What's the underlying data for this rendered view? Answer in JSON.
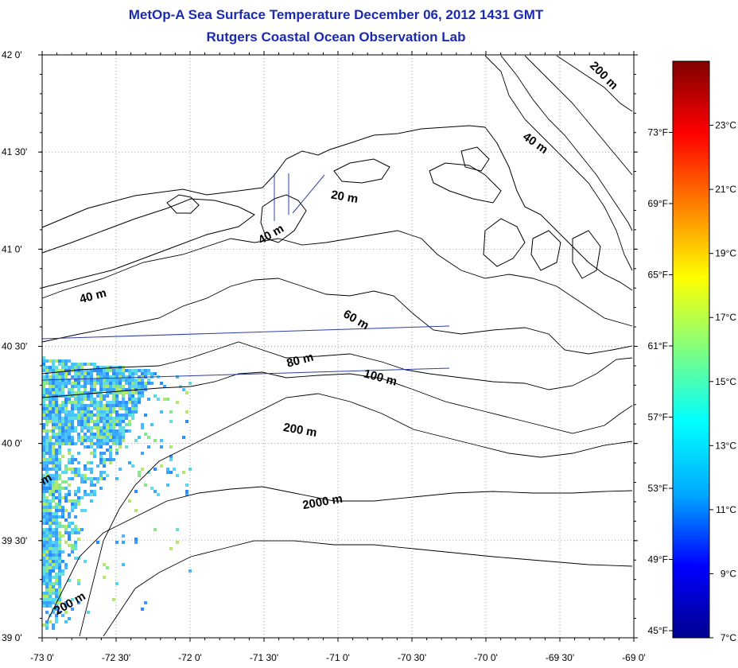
{
  "header": {
    "title": "MetOp-A Sea Surface Temperature December 06, 2012 1431 GMT",
    "subtitle": "Rutgers Coastal Ocean Observation Lab"
  },
  "map": {
    "lat_range": [
      39.0,
      42.0
    ],
    "lon_range": [
      -73.0,
      -69.0
    ],
    "grid": "dotted",
    "lat_ticks": [
      {
        "label": "42 0'",
        "value": 42.0
      },
      {
        "label": "41 30'",
        "value": 41.5
      },
      {
        "label": "41 0'",
        "value": 41.0
      },
      {
        "label": "40 30'",
        "value": 40.5
      },
      {
        "label": "40 0'",
        "value": 40.0
      },
      {
        "label": "39 30'",
        "value": 39.5
      },
      {
        "label": "39 0'",
        "value": 39.0
      }
    ],
    "lon_ticks": [
      {
        "label": "-73 0'",
        "value": -73.0
      },
      {
        "label": "-72 30'",
        "value": -72.5
      },
      {
        "label": "-72 0'",
        "value": -72.0
      },
      {
        "label": "-71 30'",
        "value": -71.5
      },
      {
        "label": "-71 0'",
        "value": -71.0
      },
      {
        "label": "-70 30'",
        "value": -70.5
      },
      {
        "label": "-70 0'",
        "value": -70.0
      },
      {
        "label": "-69 30'",
        "value": -69.5
      },
      {
        "label": "-69 0'",
        "value": -69.0
      }
    ],
    "contour_labels": [
      {
        "text": "200 m",
        "lon": -69.22,
        "lat": 41.88,
        "angle": 45
      },
      {
        "text": "40 m",
        "lon": -69.68,
        "lat": 41.53,
        "angle": 35
      },
      {
        "text": "20 m",
        "lon": -70.96,
        "lat": 41.25,
        "angle": 10
      },
      {
        "text": "40 m",
        "lon": -71.44,
        "lat": 41.06,
        "angle": -30
      },
      {
        "text": "40 m",
        "lon": -72.65,
        "lat": 40.74,
        "angle": -15
      },
      {
        "text": "60 m",
        "lon": -70.89,
        "lat": 40.62,
        "angle": 30
      },
      {
        "text": "80 m",
        "lon": -71.25,
        "lat": 40.41,
        "angle": -15
      },
      {
        "text": "100 m",
        "lon": -70.72,
        "lat": 40.32,
        "angle": 15
      },
      {
        "text": "200 m",
        "lon": -71.26,
        "lat": 40.05,
        "angle": 10
      },
      {
        "text": "2000 m",
        "lon": -71.1,
        "lat": 39.68,
        "angle": -10
      },
      {
        "text": "200 m",
        "lon": -72.8,
        "lat": 39.16,
        "angle": -30
      },
      {
        "text": "m",
        "lon": -72.96,
        "lat": 39.8,
        "angle": -30
      }
    ],
    "sst_swath": "partial coverage in southwest corner, values roughly 11-15 °C"
  },
  "colorbar": {
    "celsius_labels": [
      {
        "label": "23°C",
        "value": 23
      },
      {
        "label": "21°C",
        "value": 21
      },
      {
        "label": "19°C",
        "value": 19
      },
      {
        "label": "17°C",
        "value": 17
      },
      {
        "label": "15°C",
        "value": 15
      },
      {
        "label": "13°C",
        "value": 13
      },
      {
        "label": "11°C",
        "value": 11
      },
      {
        "label": "9°C",
        "value": 9
      },
      {
        "label": "7°C",
        "value": 7
      }
    ],
    "fahrenheit_labels": [
      {
        "label": "73°F",
        "value": 73
      },
      {
        "label": "69°F",
        "value": 69
      },
      {
        "label": "65°F",
        "value": 65
      },
      {
        "label": "61°F",
        "value": 61
      },
      {
        "label": "57°F",
        "value": 57
      },
      {
        "label": "53°F",
        "value": 53
      },
      {
        "label": "49°F",
        "value": 49
      },
      {
        "label": "45°F",
        "value": 45
      }
    ],
    "range_c": [
      7,
      25
    ],
    "colors": [
      "#00008f",
      "#0000ff",
      "#00aaff",
      "#00ffff",
      "#7fff7f",
      "#ffff00",
      "#ff8000",
      "#ff0000",
      "#800000"
    ]
  }
}
